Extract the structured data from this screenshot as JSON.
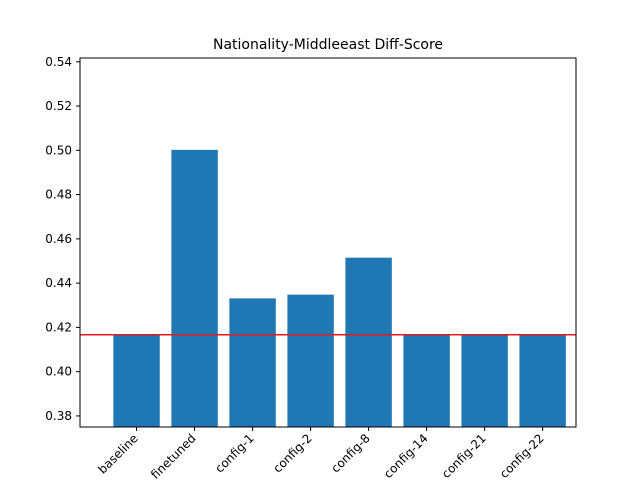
{
  "chart_data": {
    "type": "bar",
    "title": "Nationality-Middleeast Diff-Score",
    "xlabel": "",
    "ylabel": "",
    "categories": [
      "baseline",
      "finetuned",
      "config-1",
      "config-2",
      "config-8",
      "config-14",
      "config-21",
      "config-22"
    ],
    "values": [
      0.4167,
      0.5002,
      0.4331,
      0.4348,
      0.4515,
      0.4167,
      0.4167,
      0.4167
    ],
    "ylim": [
      0.375,
      0.5417
    ],
    "yticks": [
      0.38,
      0.4,
      0.42,
      0.44,
      0.46,
      0.48,
      0.5,
      0.52,
      0.54
    ],
    "ytick_labels": [
      "0.38",
      "0.40",
      "0.42",
      "0.44",
      "0.46",
      "0.48",
      "0.50",
      "0.52",
      "0.54"
    ],
    "reference_line": {
      "value": 0.4167,
      "color": "#e41a1c"
    },
    "bar_color": "#1f77b4",
    "grid": false,
    "legend": "none"
  }
}
